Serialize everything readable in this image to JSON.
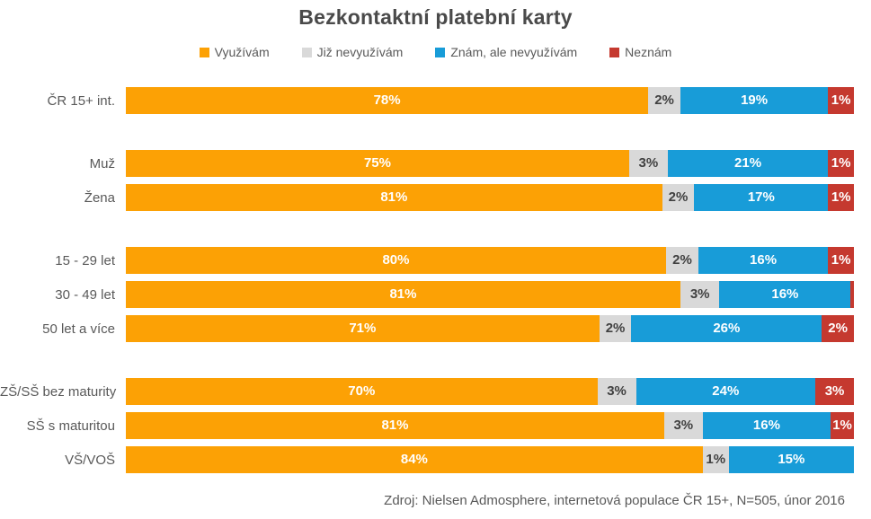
{
  "title": "Bezkontaktní platební karty",
  "legend": [
    {
      "key": "vyuzivam",
      "label": "Využívám",
      "color": "#FCA105"
    },
    {
      "key": "jiz-nevyuzivam",
      "label": "Již nevyužívám",
      "color": "#D9D9D9"
    },
    {
      "key": "znam-ale-nevyuzivam",
      "label": "Znám, ale nevyužívám",
      "color": "#189CD8"
    },
    {
      "key": "neznam",
      "label": "Neznám",
      "color": "#C5392F"
    }
  ],
  "footer": "Zdroj: Nielsen Admosphere, internetová populace ČR 15+, N=505, únor 2016",
  "chart_data": {
    "type": "bar",
    "orientation": "horizontal-stacked",
    "title": "Bezkontaktní platební karty",
    "unit": "%",
    "xlim": [
      0,
      100
    ],
    "grid": false,
    "legend_position": "top-center",
    "categories": [
      "ČR 15+ int.",
      "Muž",
      "Žena",
      "15 - 29 let",
      "30 - 49 let",
      "50 let a více",
      "ZŠ/SŠ bez maturity",
      "SŠ s maturitou",
      "VŠ/VOŠ"
    ],
    "series": [
      {
        "name": "Využívám",
        "values": [
          78,
          75,
          81,
          80,
          81,
          71,
          70,
          81,
          84
        ]
      },
      {
        "name": "Již nevyužívám",
        "values": [
          2,
          3,
          2,
          2,
          3,
          2,
          3,
          3,
          1
        ]
      },
      {
        "name": "Znám, ale nevyužívám",
        "values": [
          19,
          21,
          17,
          16,
          16,
          26,
          24,
          16,
          15
        ]
      },
      {
        "name": "Neznám",
        "values": [
          1,
          1,
          1,
          1,
          0.5,
          2,
          3,
          1,
          0
        ]
      }
    ],
    "groups": [
      {
        "rows": [
          {
            "category": "ČR 15+ int.",
            "values": [
              78,
              2,
              19,
              1
            ],
            "labels": [
              "78%",
              "2%",
              "19%",
              "1%"
            ]
          }
        ]
      },
      {
        "rows": [
          {
            "category": "Muž",
            "values": [
              75,
              3,
              21,
              1
            ],
            "labels": [
              "75%",
              "3%",
              "21%",
              "1%"
            ]
          },
          {
            "category": "Žena",
            "values": [
              81,
              2,
              17,
              1
            ],
            "labels": [
              "81%",
              "2%",
              "17%",
              "1%"
            ]
          }
        ]
      },
      {
        "rows": [
          {
            "category": "15 - 29 let",
            "values": [
              80,
              2,
              16,
              1
            ],
            "labels": [
              "80%",
              "2%",
              "16%",
              "1%"
            ]
          },
          {
            "category": "30 - 49 let",
            "values": [
              81,
              3,
              16,
              0.5
            ],
            "labels": [
              "81%",
              "3%",
              "16%",
              ""
            ]
          },
          {
            "category": "50 let a více",
            "values": [
              71,
              2,
              26,
              2
            ],
            "labels": [
              "71%",
              "2%",
              "26%",
              "2%"
            ]
          }
        ]
      },
      {
        "rows": [
          {
            "category": "ZŠ/SŠ bez maturity",
            "values": [
              70,
              3,
              24,
              3
            ],
            "labels": [
              "70%",
              "3%",
              "24%",
              "3%"
            ]
          },
          {
            "category": "SŠ s maturitou",
            "values": [
              81,
              3,
              16,
              0.6
            ],
            "labels": [
              "81%",
              "3%",
              "16%",
              "1%"
            ]
          },
          {
            "category": "VŠ/VOŠ",
            "values": [
              84,
              1,
              15,
              0
            ],
            "labels": [
              "84%",
              "1%",
              "15%",
              ""
            ]
          }
        ]
      }
    ]
  }
}
